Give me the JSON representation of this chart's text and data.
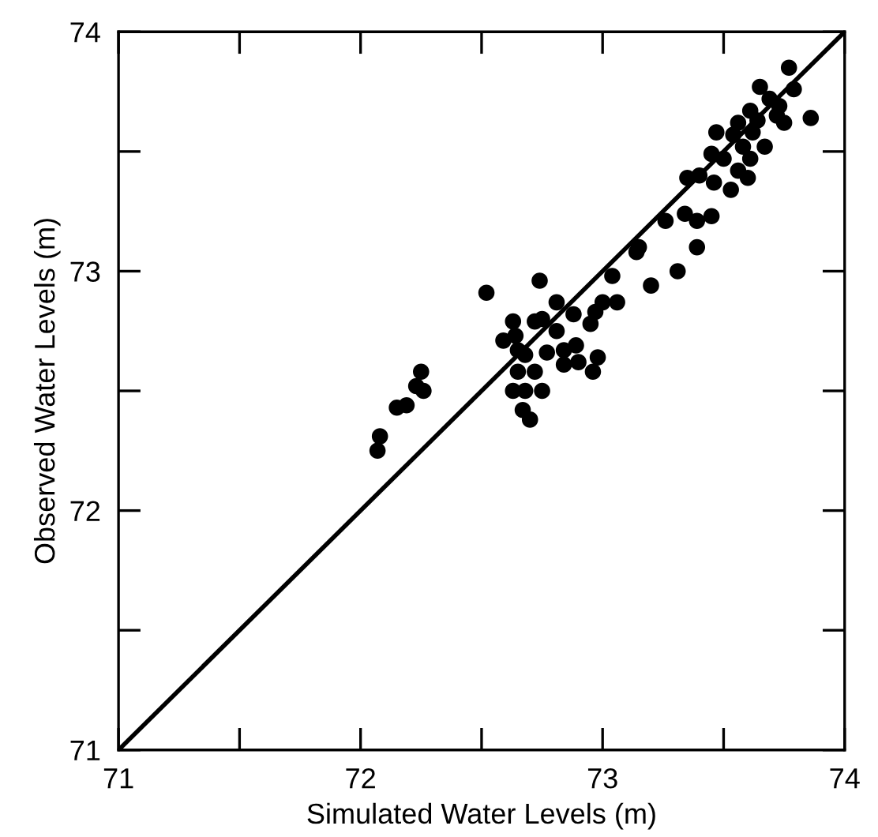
{
  "chart_data": {
    "type": "scatter",
    "xlabel": "Simulated Water Levels (m)",
    "ylabel": "Observed Water Levels (m)",
    "xlim": [
      71,
      74
    ],
    "ylim": [
      71,
      74
    ],
    "xticks": [
      71,
      {
        "value": 71.5,
        "label": null
      },
      72,
      {
        "value": 72.5,
        "label": null
      },
      73,
      {
        "value": 73.5,
        "label": null
      },
      74
    ],
    "yticks": [
      71,
      {
        "value": 71.5,
        "label": null
      },
      72,
      {
        "value": 72.5,
        "label": null
      },
      73,
      {
        "value": 73.5,
        "label": null
      },
      74
    ],
    "grid": false,
    "marker": "circle",
    "series": [
      {
        "color": "#000000",
        "x": [
          72.08,
          72.07,
          72.15,
          72.19,
          72.23,
          72.26,
          72.25,
          72.52,
          72.74,
          72.63,
          72.72,
          72.75,
          72.59,
          72.64,
          72.65,
          72.68,
          72.65,
          72.72,
          72.63,
          72.68,
          72.75,
          72.67,
          72.7,
          72.81,
          72.88,
          72.81,
          72.77,
          72.84,
          72.89,
          72.84,
          72.9,
          72.96,
          72.98,
          72.95,
          72.97,
          73.0,
          73.06,
          73.04,
          73.2,
          73.14,
          73.31,
          73.15,
          73.39,
          73.34,
          73.39,
          73.45,
          73.26,
          73.35,
          73.4,
          73.46,
          73.53,
          73.45,
          73.5,
          73.56,
          73.6,
          73.47,
          73.54,
          73.58,
          73.61,
          73.67,
          73.61,
          73.65,
          73.69,
          73.73,
          73.75,
          73.79,
          73.77,
          73.86,
          73.72,
          73.64,
          73.56,
          73.62
        ],
        "values": [
          72.31,
          72.25,
          72.43,
          72.44,
          72.52,
          72.5,
          72.58,
          72.91,
          72.96,
          72.79,
          72.79,
          72.8,
          72.71,
          72.73,
          72.67,
          72.65,
          72.58,
          72.58,
          72.5,
          72.5,
          72.5,
          72.42,
          72.38,
          72.87,
          72.82,
          72.75,
          72.66,
          72.67,
          72.69,
          72.61,
          72.62,
          72.58,
          72.64,
          72.78,
          72.83,
          72.87,
          72.87,
          72.98,
          72.94,
          73.08,
          73.0,
          73.1,
          73.1,
          73.24,
          73.21,
          73.23,
          73.21,
          73.39,
          73.4,
          73.37,
          73.34,
          73.49,
          73.47,
          73.42,
          73.39,
          73.58,
          73.57,
          73.52,
          73.47,
          73.52,
          73.67,
          73.77,
          73.72,
          73.69,
          73.62,
          73.76,
          73.85,
          73.64,
          73.65,
          73.63,
          73.62,
          73.58
        ]
      },
      {
        "type": "line",
        "color": "#000000",
        "marker": "none",
        "line_style": "solid",
        "x": [
          71,
          74
        ],
        "values": [
          71,
          74
        ]
      }
    ]
  }
}
